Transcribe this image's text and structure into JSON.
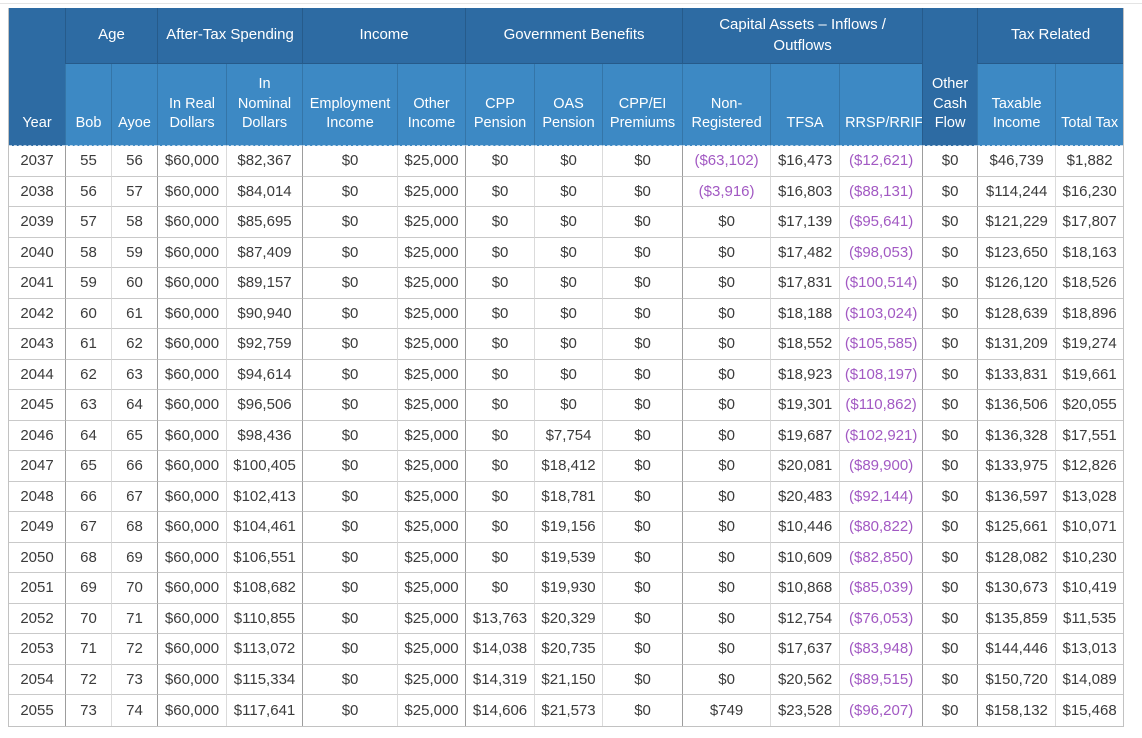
{
  "colors": {
    "header_dark": "#2d6ba3",
    "header_light": "#3d89c4",
    "negative": "#a259c3",
    "text": "#3b3b3b"
  },
  "table": {
    "header": {
      "row1": [
        {
          "label": "Year",
          "rowspan": 2
        },
        {
          "label": "Age",
          "colspan": 2
        },
        {
          "label": "After-Tax Spending",
          "colspan": 2
        },
        {
          "label": "Income",
          "colspan": 2
        },
        {
          "label": "Government Benefits",
          "colspan": 3
        },
        {
          "label": "Capital Assets – Inflows / Outflows",
          "colspan": 3
        },
        {
          "label": "Other Cash Flow",
          "rowspan": 2
        },
        {
          "label": "Tax Related",
          "colspan": 2
        }
      ],
      "row2": [
        "Bob",
        "Ayoe",
        "In Real Dollars",
        "In Nominal Dollars",
        "Employment Income",
        "Other Income",
        "CPP Pension",
        "OAS Pension",
        "CPP/EI Premiums",
        "Non-Registered",
        "TFSA",
        "RRSP/RRIF",
        "Taxable Income",
        "Total Tax"
      ],
      "column_keys": [
        "year",
        "age-bob",
        "age-ayoe",
        "real-dollars",
        "nominal-dollars",
        "employment-income",
        "other-income",
        "cpp-pension",
        "oas-pension",
        "cpp-ei-premiums",
        "non-registered",
        "tfsa",
        "rrsp-rrif",
        "other-cash-flow",
        "taxable-income",
        "total-tax"
      ]
    },
    "rows": [
      [
        "2037",
        "55",
        "56",
        "$60,000",
        "$82,367",
        "$0",
        "$25,000",
        "$0",
        "$0",
        "$0",
        "($63,102)",
        "$16,473",
        "($12,621)",
        "$0",
        "$46,739",
        "$1,882"
      ],
      [
        "2038",
        "56",
        "57",
        "$60,000",
        "$84,014",
        "$0",
        "$25,000",
        "$0",
        "$0",
        "$0",
        "($3,916)",
        "$16,803",
        "($88,131)",
        "$0",
        "$114,244",
        "$16,230"
      ],
      [
        "2039",
        "57",
        "58",
        "$60,000",
        "$85,695",
        "$0",
        "$25,000",
        "$0",
        "$0",
        "$0",
        "$0",
        "$17,139",
        "($95,641)",
        "$0",
        "$121,229",
        "$17,807"
      ],
      [
        "2040",
        "58",
        "59",
        "$60,000",
        "$87,409",
        "$0",
        "$25,000",
        "$0",
        "$0",
        "$0",
        "$0",
        "$17,482",
        "($98,053)",
        "$0",
        "$123,650",
        "$18,163"
      ],
      [
        "2041",
        "59",
        "60",
        "$60,000",
        "$89,157",
        "$0",
        "$25,000",
        "$0",
        "$0",
        "$0",
        "$0",
        "$17,831",
        "($100,514)",
        "$0",
        "$126,120",
        "$18,526"
      ],
      [
        "2042",
        "60",
        "61",
        "$60,000",
        "$90,940",
        "$0",
        "$25,000",
        "$0",
        "$0",
        "$0",
        "$0",
        "$18,188",
        "($103,024)",
        "$0",
        "$128,639",
        "$18,896"
      ],
      [
        "2043",
        "61",
        "62",
        "$60,000",
        "$92,759",
        "$0",
        "$25,000",
        "$0",
        "$0",
        "$0",
        "$0",
        "$18,552",
        "($105,585)",
        "$0",
        "$131,209",
        "$19,274"
      ],
      [
        "2044",
        "62",
        "63",
        "$60,000",
        "$94,614",
        "$0",
        "$25,000",
        "$0",
        "$0",
        "$0",
        "$0",
        "$18,923",
        "($108,197)",
        "$0",
        "$133,831",
        "$19,661"
      ],
      [
        "2045",
        "63",
        "64",
        "$60,000",
        "$96,506",
        "$0",
        "$25,000",
        "$0",
        "$0",
        "$0",
        "$0",
        "$19,301",
        "($110,862)",
        "$0",
        "$136,506",
        "$20,055"
      ],
      [
        "2046",
        "64",
        "65",
        "$60,000",
        "$98,436",
        "$0",
        "$25,000",
        "$0",
        "$7,754",
        "$0",
        "$0",
        "$19,687",
        "($102,921)",
        "$0",
        "$136,328",
        "$17,551"
      ],
      [
        "2047",
        "65",
        "66",
        "$60,000",
        "$100,405",
        "$0",
        "$25,000",
        "$0",
        "$18,412",
        "$0",
        "$0",
        "$20,081",
        "($89,900)",
        "$0",
        "$133,975",
        "$12,826"
      ],
      [
        "2048",
        "66",
        "67",
        "$60,000",
        "$102,413",
        "$0",
        "$25,000",
        "$0",
        "$18,781",
        "$0",
        "$0",
        "$20,483",
        "($92,144)",
        "$0",
        "$136,597",
        "$13,028"
      ],
      [
        "2049",
        "67",
        "68",
        "$60,000",
        "$104,461",
        "$0",
        "$25,000",
        "$0",
        "$19,156",
        "$0",
        "$0",
        "$10,446",
        "($80,822)",
        "$0",
        "$125,661",
        "$10,071"
      ],
      [
        "2050",
        "68",
        "69",
        "$60,000",
        "$106,551",
        "$0",
        "$25,000",
        "$0",
        "$19,539",
        "$0",
        "$0",
        "$10,609",
        "($82,850)",
        "$0",
        "$128,082",
        "$10,230"
      ],
      [
        "2051",
        "69",
        "70",
        "$60,000",
        "$108,682",
        "$0",
        "$25,000",
        "$0",
        "$19,930",
        "$0",
        "$0",
        "$10,868",
        "($85,039)",
        "$0",
        "$130,673",
        "$10,419"
      ],
      [
        "2052",
        "70",
        "71",
        "$60,000",
        "$110,855",
        "$0",
        "$25,000",
        "$13,763",
        "$20,329",
        "$0",
        "$0",
        "$12,754",
        "($76,053)",
        "$0",
        "$135,859",
        "$11,535"
      ],
      [
        "2053",
        "71",
        "72",
        "$60,000",
        "$113,072",
        "$0",
        "$25,000",
        "$14,038",
        "$20,735",
        "$0",
        "$0",
        "$17,637",
        "($83,948)",
        "$0",
        "$144,446",
        "$13,013"
      ],
      [
        "2054",
        "72",
        "73",
        "$60,000",
        "$115,334",
        "$0",
        "$25,000",
        "$14,319",
        "$21,150",
        "$0",
        "$0",
        "$20,562",
        "($89,515)",
        "$0",
        "$150,720",
        "$14,089"
      ],
      [
        "2055",
        "73",
        "74",
        "$60,000",
        "$117,641",
        "$0",
        "$25,000",
        "$14,606",
        "$21,573",
        "$0",
        "$749",
        "$23,528",
        "($96,207)",
        "$0",
        "$158,132",
        "$15,468"
      ]
    ]
  }
}
